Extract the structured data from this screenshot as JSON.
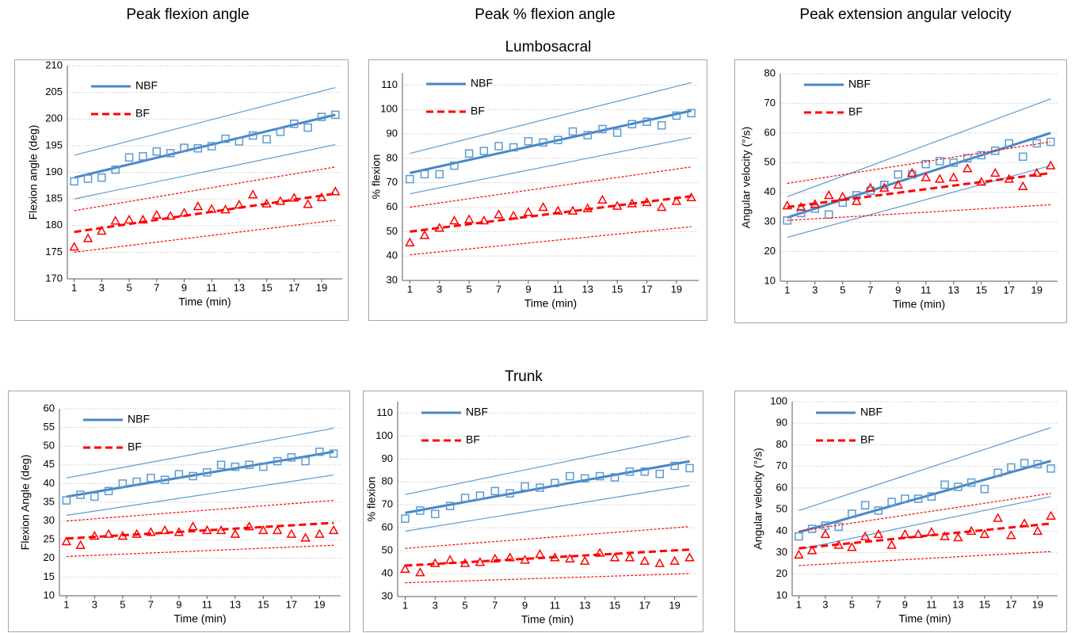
{
  "figure": {
    "column_titles": [
      "Peak flexion angle",
      "Peak % flexion angle",
      "Peak extension angular velocity"
    ],
    "row_titles": [
      "Lumbosacral",
      "Trunk"
    ]
  },
  "chart_data": [
    {
      "type": "scatter",
      "xlabel": "Time (min)",
      "ylabel": "Flexion angle (deg)",
      "x": [
        1,
        2,
        3,
        4,
        5,
        6,
        7,
        8,
        9,
        10,
        11,
        12,
        13,
        14,
        15,
        16,
        17,
        18,
        19,
        20
      ],
      "xlim": [
        0.5,
        20.5
      ],
      "xticks": [
        1,
        3,
        5,
        7,
        9,
        11,
        13,
        15,
        17,
        19
      ],
      "ylim": [
        170,
        210
      ],
      "yticks": [
        170,
        175,
        180,
        185,
        190,
        195,
        200,
        205,
        210
      ],
      "grid": true,
      "series": [
        {
          "name": "NBF",
          "color": "#5b9bd5",
          "values": [
            188.3,
            188.8,
            189,
            190.5,
            192.8,
            193,
            193.9,
            193.6,
            194.6,
            194.5,
            194.9,
            196.3,
            195.8,
            196.9,
            196.2,
            197.6,
            199.1,
            198.4,
            200.4,
            200.8
          ],
          "fit": [
            189,
            200.8
          ],
          "band_lower": [
            185,
            195.2
          ],
          "band_upper": [
            193.2,
            205.9
          ]
        },
        {
          "name": "BF",
          "color": "#ff0000",
          "values": [
            176,
            177.6,
            179,
            180.9,
            181.1,
            181.1,
            182,
            181.8,
            182.4,
            183.6,
            183.1,
            183,
            183.9,
            185.8,
            184.1,
            184.6,
            185.2,
            184,
            185.3,
            186.4
          ],
          "fit": [
            178.8,
            186
          ],
          "band_lower": [
            175,
            181
          ],
          "band_upper": [
            182.8,
            191
          ]
        }
      ]
    },
    {
      "type": "scatter",
      "xlabel": "Time (min)",
      "ylabel": "% flexion",
      "x": [
        1,
        2,
        3,
        4,
        5,
        6,
        7,
        8,
        9,
        10,
        11,
        12,
        13,
        14,
        15,
        16,
        17,
        18,
        19,
        20
      ],
      "xlim": [
        0.5,
        20.5
      ],
      "xticks": [
        1,
        3,
        5,
        7,
        9,
        11,
        13,
        15,
        17,
        19
      ],
      "ylim": [
        30,
        115
      ],
      "yticks": [
        30,
        40,
        50,
        60,
        70,
        80,
        90,
        100,
        110
      ],
      "grid": true,
      "series": [
        {
          "name": "NBF",
          "color": "#5b9bd5",
          "values": [
            71.5,
            73.5,
            73.5,
            77,
            82,
            83,
            85,
            84.5,
            87,
            86.5,
            87.5,
            91,
            89.5,
            92,
            90.5,
            94,
            95,
            93.5,
            97.5,
            98.5
          ],
          "fit": [
            74,
            99.5
          ],
          "band_lower": [
            65.5,
            88.5
          ],
          "band_upper": [
            82,
            111
          ]
        },
        {
          "name": "BF",
          "color": "#ff0000",
          "values": [
            45.5,
            48.5,
            51.5,
            54.5,
            55,
            54.5,
            57,
            56.5,
            58,
            60,
            58.5,
            58.5,
            59.5,
            63,
            60.5,
            61.5,
            62,
            60,
            62.5,
            64
          ],
          "fit": [
            50,
            64.5
          ],
          "band_lower": [
            40.5,
            52
          ],
          "band_upper": [
            60,
            76.5
          ]
        }
      ]
    },
    {
      "type": "scatter",
      "xlabel": "Time (min)",
      "ylabel": "Angular velocity (°/s)",
      "x": [
        1,
        2,
        3,
        4,
        5,
        6,
        7,
        8,
        9,
        10,
        11,
        12,
        13,
        14,
        15,
        16,
        17,
        18,
        19,
        20
      ],
      "xlim": [
        0.5,
        20.5
      ],
      "xticks": [
        1,
        3,
        5,
        7,
        9,
        11,
        13,
        15,
        17,
        19
      ],
      "ylim": [
        10,
        80
      ],
      "yticks": [
        10,
        20,
        30,
        40,
        50,
        60,
        70,
        80
      ],
      "grid": true,
      "series": [
        {
          "name": "NBF",
          "color": "#5b9bd5",
          "values": [
            30.5,
            33,
            34.5,
            32.5,
            36.5,
            39,
            40.5,
            42.5,
            46,
            46,
            49.5,
            50.5,
            50,
            51.5,
            52.5,
            54,
            56.5,
            52,
            56.5,
            57
          ],
          "fit": [
            31.5,
            60
          ],
          "band_lower": [
            24.8,
            49
          ],
          "band_upper": [
            38.5,
            71.5
          ]
        },
        {
          "name": "BF",
          "color": "#ff0000",
          "values": [
            35.5,
            35,
            36,
            39,
            38.5,
            37,
            41.5,
            41.5,
            42.5,
            46.5,
            45,
            44.5,
            45,
            48,
            43.5,
            46.5,
            44.5,
            42,
            46.5,
            49
          ],
          "fit": [
            35,
            46.5
          ],
          "band_lower": [
            30.5,
            35.8
          ],
          "band_upper": [
            43,
            57
          ]
        }
      ]
    },
    {
      "type": "scatter",
      "xlabel": "Time (min)",
      "ylabel": "Flexion Angle (deg)",
      "x": [
        1,
        2,
        3,
        4,
        5,
        6,
        7,
        8,
        9,
        10,
        11,
        12,
        13,
        14,
        15,
        16,
        17,
        18,
        19,
        20
      ],
      "xlim": [
        0.5,
        20.5
      ],
      "xticks": [
        1,
        3,
        5,
        7,
        9,
        11,
        13,
        15,
        17,
        19
      ],
      "ylim": [
        10,
        60
      ],
      "yticks": [
        10,
        15,
        20,
        25,
        30,
        35,
        40,
        45,
        50,
        55,
        60
      ],
      "grid": true,
      "series": [
        {
          "name": "NBF",
          "color": "#5b9bd5",
          "values": [
            35.5,
            37,
            36.5,
            38,
            40,
            40.5,
            41.5,
            41,
            42.5,
            42,
            43,
            45,
            44.5,
            45,
            44.5,
            46,
            47,
            46,
            48.5,
            48
          ],
          "fit": [
            36.5,
            48.5
          ],
          "band_lower": [
            31.5,
            42.3
          ],
          "band_upper": [
            41.5,
            54.8
          ]
        },
        {
          "name": "BF",
          "color": "#ff0000",
          "values": [
            24.5,
            23.5,
            26,
            26.5,
            26,
            26.5,
            27,
            27.5,
            27,
            28.5,
            27.5,
            27.5,
            26.5,
            28.5,
            27.5,
            27.5,
            26.5,
            25.5,
            26.5,
            27.5
          ],
          "fit": [
            25.3,
            29.5
          ],
          "band_lower": [
            20.5,
            23.5
          ],
          "band_upper": [
            30,
            35.5
          ]
        }
      ]
    },
    {
      "type": "scatter",
      "xlabel": "Time (min)",
      "ylabel": "% flexion",
      "x": [
        1,
        2,
        3,
        4,
        5,
        6,
        7,
        8,
        9,
        10,
        11,
        12,
        13,
        14,
        15,
        16,
        17,
        18,
        19,
        20
      ],
      "xlim": [
        0.5,
        20.5
      ],
      "xticks": [
        1,
        3,
        5,
        7,
        9,
        11,
        13,
        15,
        17,
        19
      ],
      "ylim": [
        30,
        115
      ],
      "yticks": [
        30,
        40,
        50,
        60,
        70,
        80,
        90,
        100,
        110
      ],
      "grid": true,
      "series": [
        {
          "name": "NBF",
          "color": "#5b9bd5",
          "values": [
            64,
            67.5,
            66,
            69.5,
            73,
            74,
            76,
            75,
            78,
            77.5,
            79.5,
            82.5,
            81.5,
            82.5,
            82,
            84.5,
            84.5,
            83.5,
            87,
            86
          ],
          "fit": [
            66.5,
            89
          ],
          "band_lower": [
            58.5,
            78.5
          ],
          "band_upper": [
            74.5,
            100
          ]
        },
        {
          "name": "BF",
          "color": "#ff0000",
          "values": [
            42,
            40.5,
            44.5,
            46,
            44.5,
            45,
            46.5,
            47,
            46,
            48.5,
            47,
            46.5,
            45.5,
            49,
            47,
            47,
            45.5,
            44.5,
            45.5,
            47
          ],
          "fit": [
            43.5,
            50.5
          ],
          "band_lower": [
            36,
            40
          ],
          "band_upper": [
            51,
            60.5
          ]
        }
      ]
    },
    {
      "type": "scatter",
      "xlabel": "Time (min)",
      "ylabel": "Angular velocity (°/s)",
      "x": [
        1,
        2,
        3,
        4,
        5,
        6,
        7,
        8,
        9,
        10,
        11,
        12,
        13,
        14,
        15,
        16,
        17,
        18,
        19,
        20
      ],
      "xlim": [
        0.5,
        20.5
      ],
      "xticks": [
        1,
        3,
        5,
        7,
        9,
        11,
        13,
        15,
        17,
        19
      ],
      "ylim": [
        10,
        100
      ],
      "yticks": [
        10,
        20,
        30,
        40,
        50,
        60,
        70,
        80,
        90,
        100
      ],
      "grid": true,
      "series": [
        {
          "name": "NBF",
          "color": "#5b9bd5",
          "values": [
            37.5,
            41,
            42.5,
            42,
            48,
            52,
            49.5,
            53.5,
            55,
            55,
            56,
            61.5,
            60.5,
            62.5,
            59.5,
            67,
            69.5,
            71.5,
            71,
            69
          ],
          "fit": [
            39.5,
            72.5
          ],
          "band_lower": [
            31.5,
            56
          ],
          "band_upper": [
            49.5,
            88
          ]
        },
        {
          "name": "BF",
          "color": "#ff0000",
          "values": [
            29,
            31,
            38.5,
            33.5,
            32.5,
            37.5,
            38.5,
            33.5,
            38.5,
            38.5,
            39.5,
            37.5,
            37,
            40,
            38.5,
            46,
            38,
            43.5,
            40,
            47
          ],
          "fit": [
            32,
            43.5
          ],
          "band_lower": [
            24,
            30.5
          ],
          "band_upper": [
            40,
            57.5
          ]
        }
      ]
    }
  ]
}
